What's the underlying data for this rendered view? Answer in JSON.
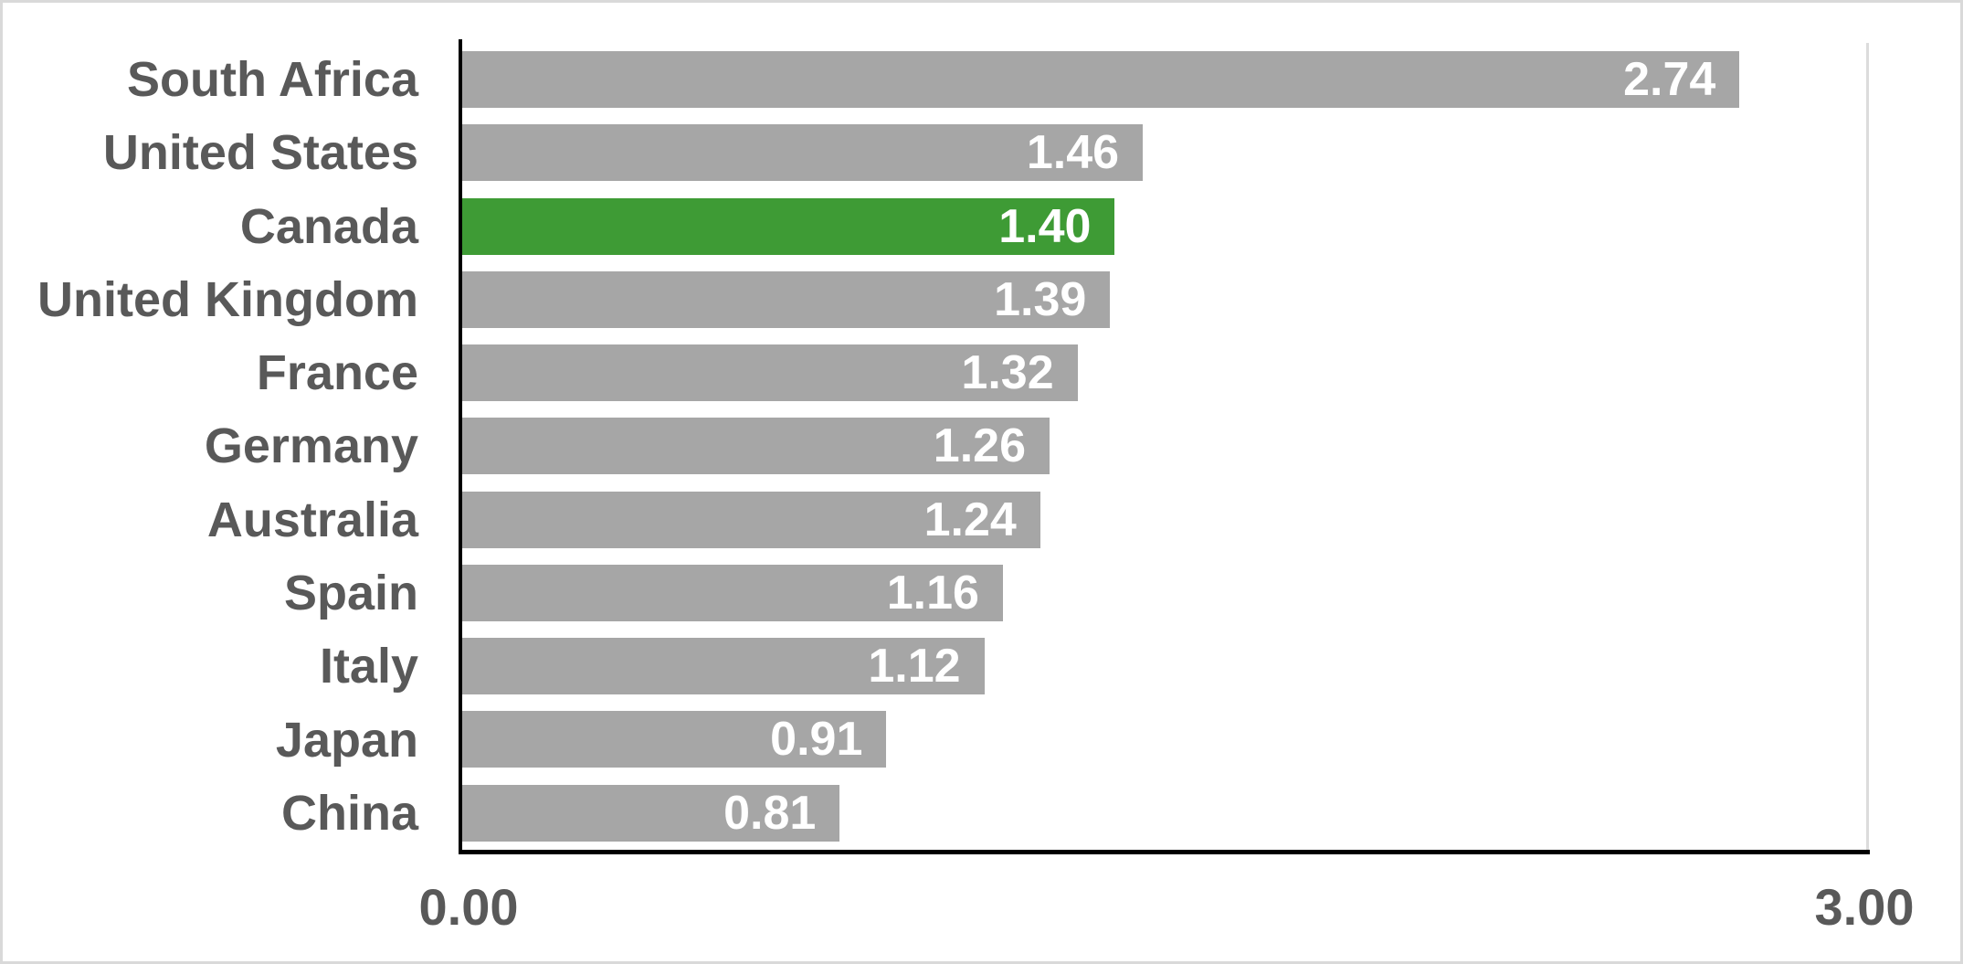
{
  "chart_data": {
    "type": "bar",
    "orientation": "horizontal",
    "title": "",
    "categories": [
      "South Africa",
      "United States",
      "Canada",
      "United Kingdom",
      "France",
      "Germany",
      "Australia",
      "Spain",
      "Italy",
      "Japan",
      "China"
    ],
    "values": [
      2.74,
      1.46,
      1.4,
      1.39,
      1.32,
      1.26,
      1.24,
      1.16,
      1.12,
      0.91,
      0.81
    ],
    "value_labels": [
      "2.74",
      "1.46",
      "1.40",
      "1.39",
      "1.32",
      "1.26",
      "1.24",
      "1.16",
      "1.12",
      "0.91",
      "0.81"
    ],
    "highlighted_category": "Canada",
    "x_ticks": [
      "0.00",
      "3.00"
    ],
    "xlim": [
      0,
      3.0
    ],
    "grid": false,
    "legend": false,
    "bar_color": "#a6a6a6",
    "highlight_color": "#3e9b35",
    "value_label_color": "#ffffff",
    "category_label_color": "#595959",
    "axis_color": "#000000"
  }
}
